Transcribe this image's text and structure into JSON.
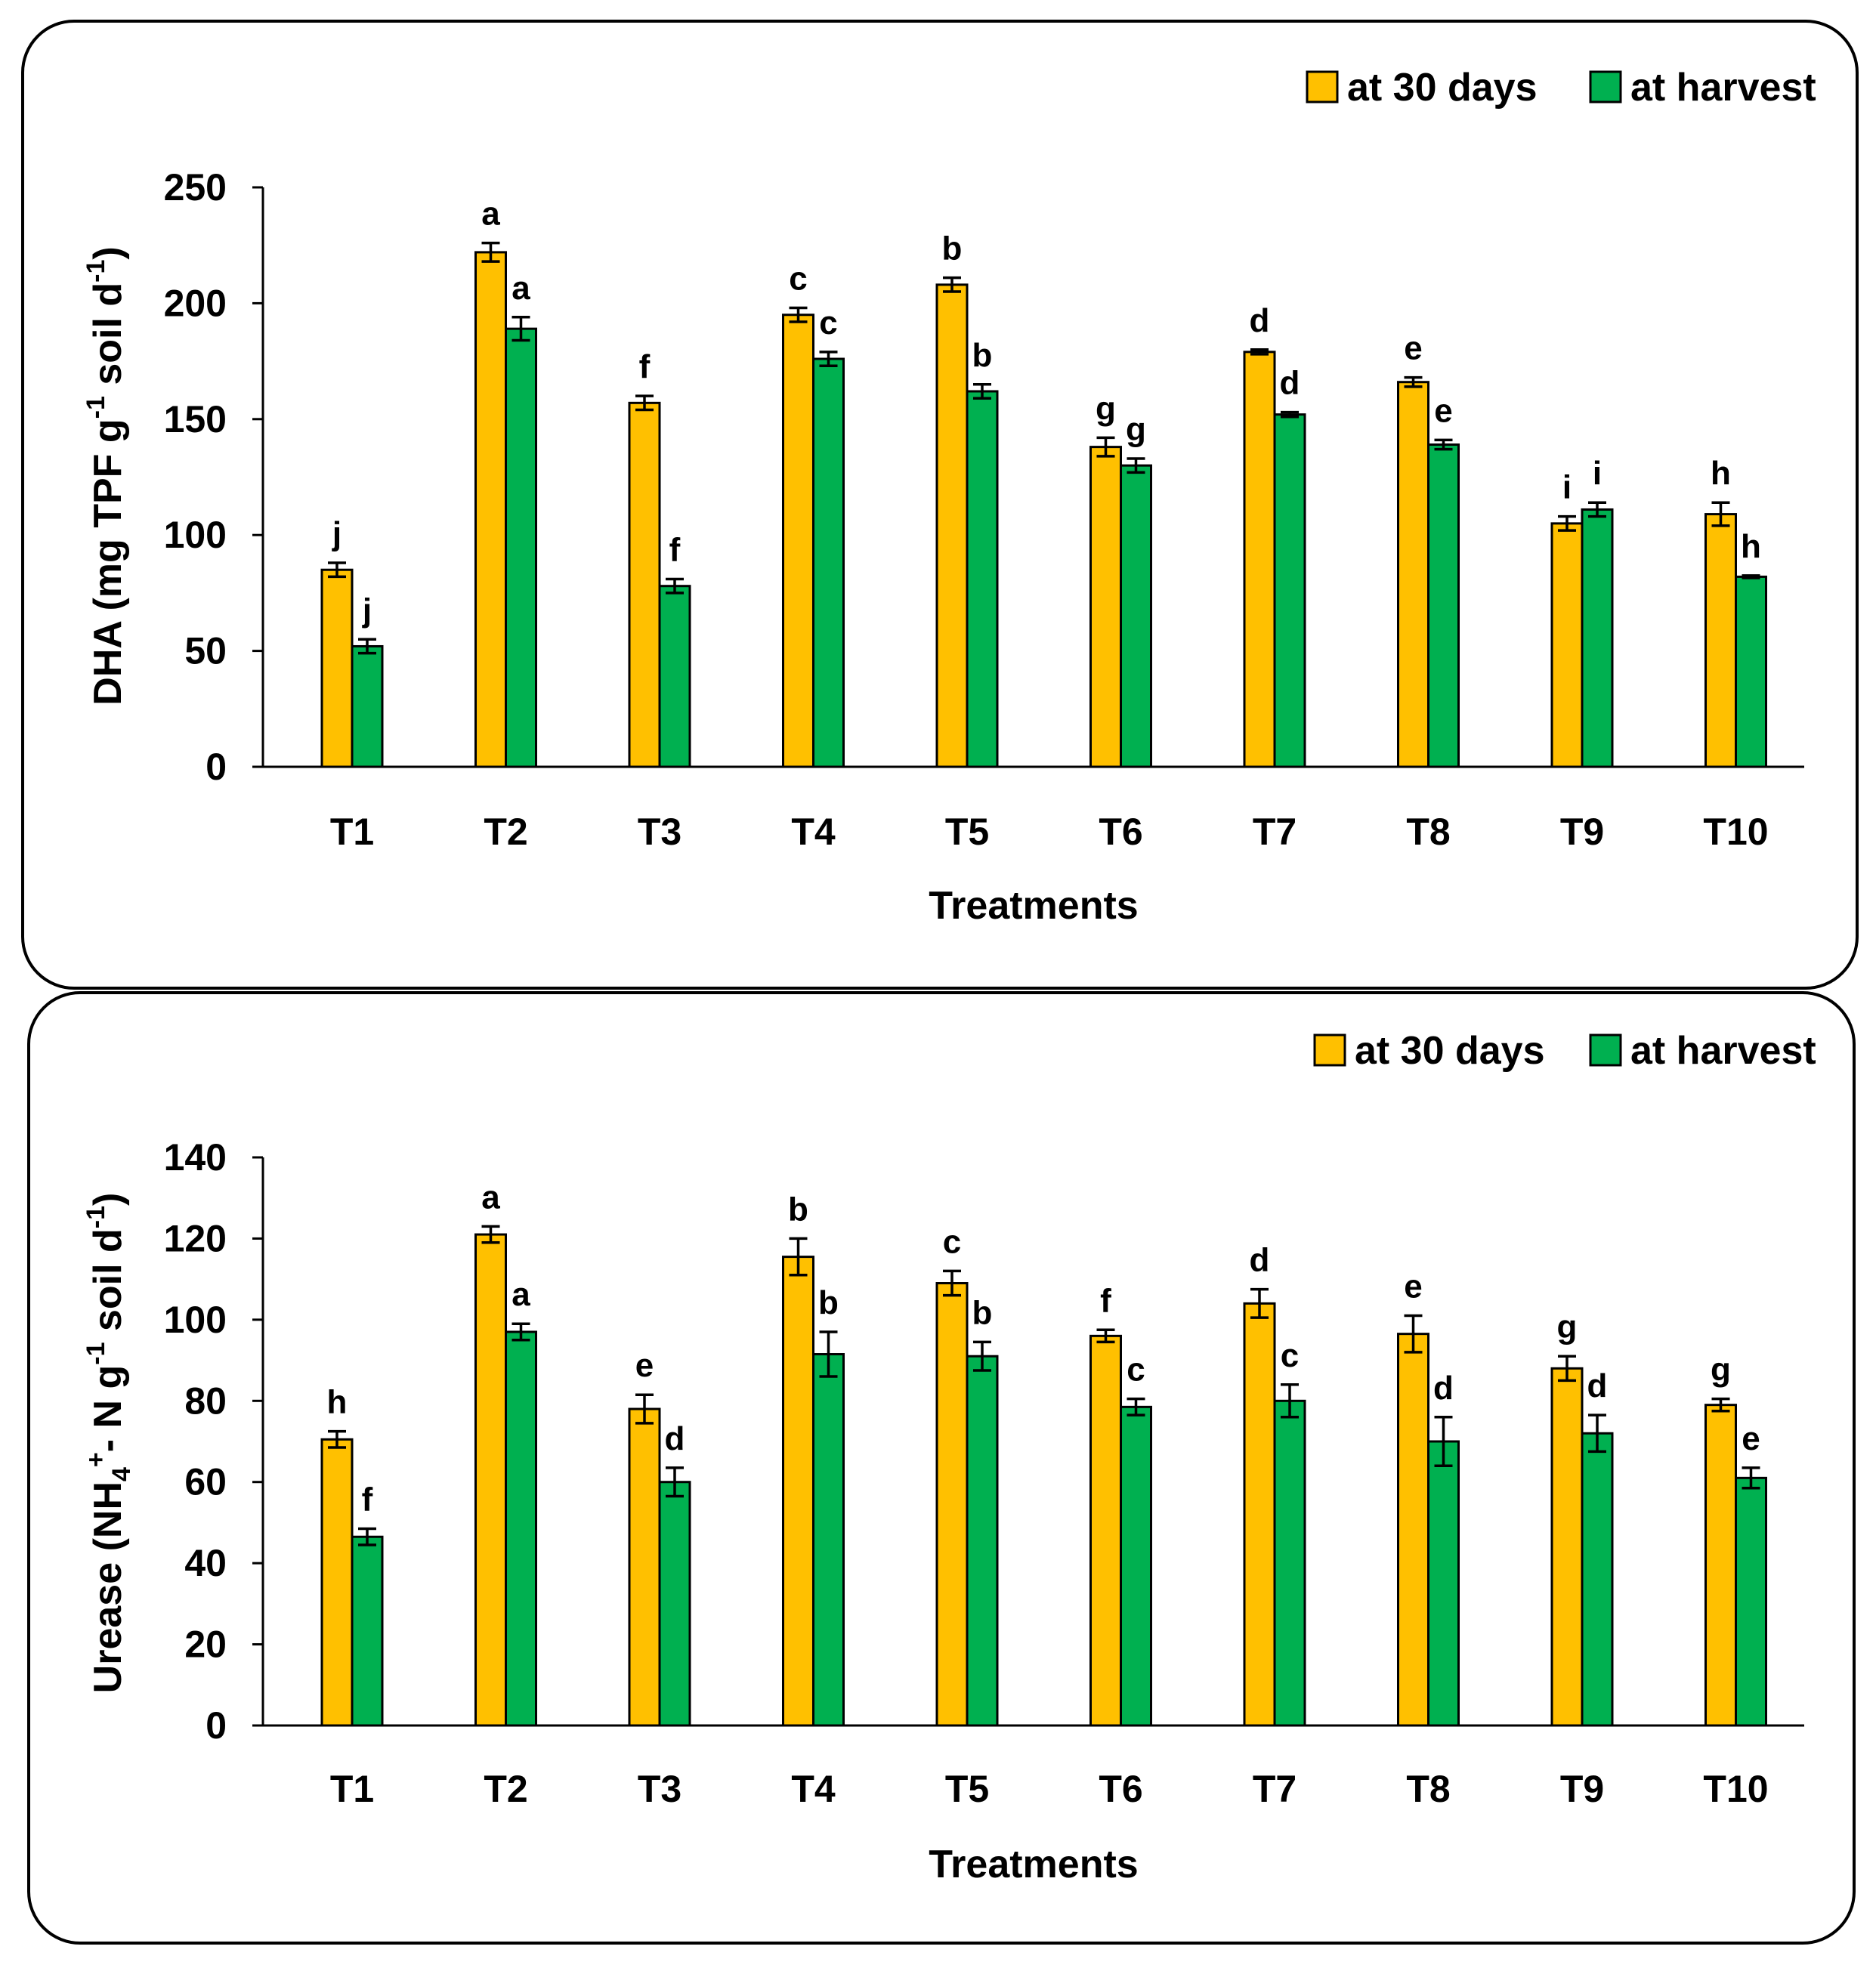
{
  "chart_data": [
    {
      "type": "bar",
      "title": "",
      "xlabel": "Treatments",
      "ylabel": "DHA (mg TPF g-1 soil d-1)",
      "ylabel_parts": {
        "main": "DHA (mg TPF g",
        "sup1": "-1",
        "mid": " soil d",
        "sup2": "-1",
        "end": ")"
      },
      "ylim": [
        0,
        250
      ],
      "yticks": [
        0,
        50,
        100,
        150,
        200,
        250
      ],
      "categories": [
        "T1",
        "T2",
        "T3",
        "T4",
        "T5",
        "T6",
        "T7",
        "T8",
        "T9",
        "T10"
      ],
      "legend_position": "top-right",
      "grid": false,
      "series": [
        {
          "name": "at 30 days",
          "color": "#FFC000",
          "values": [
            85,
            222,
            157,
            195,
            208,
            138,
            179,
            166,
            105,
            109
          ],
          "errors": [
            3,
            4,
            3,
            3,
            3,
            4,
            1,
            2,
            3,
            5
          ],
          "letters": [
            "j",
            "a",
            "f",
            "c",
            "b",
            "g",
            "d",
            "e",
            "i",
            "h"
          ]
        },
        {
          "name": "at harvest",
          "color": "#00B050",
          "values": [
            52,
            189,
            78,
            176,
            162,
            130,
            152,
            139,
            111,
            82
          ],
          "errors": [
            3,
            5,
            3,
            3,
            3,
            3,
            1,
            2,
            3,
            0.5
          ],
          "letters": [
            "j",
            "a",
            "f",
            "c",
            "b",
            "g",
            "d",
            "e",
            "i",
            "h"
          ]
        }
      ]
    },
    {
      "type": "bar",
      "title": "",
      "xlabel": "Treatments",
      "ylabel": "Urease (NH4+- N g-1 soil d-1)",
      "ylabel_parts": {
        "main": "Urease (NH",
        "sub": "4",
        "sup0": "+",
        "mid0": "- N g",
        "sup1": "-1",
        "mid": " soil d",
        "sup2": "-1",
        "end": ")"
      },
      "ylim": [
        0,
        140
      ],
      "yticks": [
        0,
        20,
        40,
        60,
        80,
        100,
        120,
        140
      ],
      "categories": [
        "T1",
        "T2",
        "T3",
        "T4",
        "T5",
        "T6",
        "T7",
        "T8",
        "T9",
        "T10"
      ],
      "legend_position": "top-right",
      "grid": false,
      "series": [
        {
          "name": "at 30 days",
          "color": "#FFC000",
          "values": [
            70.5,
            121,
            78,
            115.5,
            109,
            96,
            104,
            96.5,
            88,
            79
          ],
          "errors": [
            2,
            2,
            3.5,
            4.5,
            3,
            1.5,
            3.5,
            4.5,
            3,
            1.5
          ],
          "letters": [
            "h",
            "a",
            "e",
            "b",
            "c",
            "f",
            "d",
            "e",
            "g",
            "g"
          ]
        },
        {
          "name": "at harvest",
          "color": "#00B050",
          "values": [
            46.5,
            97,
            60,
            91.5,
            91,
            78.5,
            80,
            70,
            72,
            61
          ],
          "errors": [
            2,
            2,
            3.5,
            5.5,
            3.5,
            2,
            4,
            6,
            4.5,
            2.5
          ],
          "letters": [
            "f",
            "a",
            "d",
            "b",
            "b",
            "c",
            "c",
            "d",
            "d",
            "e"
          ]
        }
      ]
    }
  ]
}
